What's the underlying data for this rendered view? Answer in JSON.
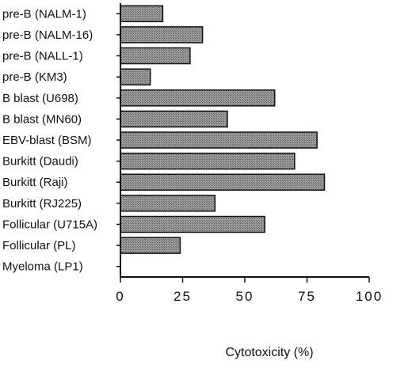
{
  "chart_data": {
    "type": "bar",
    "orientation": "horizontal",
    "categories": [
      "pre-B (NALM-1)",
      "pre-B (NALM-16)",
      "pre-B (NALL-1)",
      "pre-B (KM3)",
      "B blast (U698)",
      "B blast (MN60)",
      "EBV-blast (BSM)",
      "Burkitt (Daudi)",
      "Burkitt (Raji)",
      "Burkitt (RJ225)",
      "Follicular (U715A)",
      "Follicular (PL)",
      "Myeloma (LP1)"
    ],
    "values": [
      17,
      33,
      28,
      12,
      62,
      43,
      79,
      70,
      82,
      38,
      58,
      24,
      0
    ],
    "xlabel": "Cytotoxicity (%)",
    "xlim": [
      0,
      100
    ],
    "xticks": [
      "0",
      "25",
      "50",
      "75",
      "100"
    ],
    "grid": false,
    "bar_color": "#8a8a8a"
  }
}
